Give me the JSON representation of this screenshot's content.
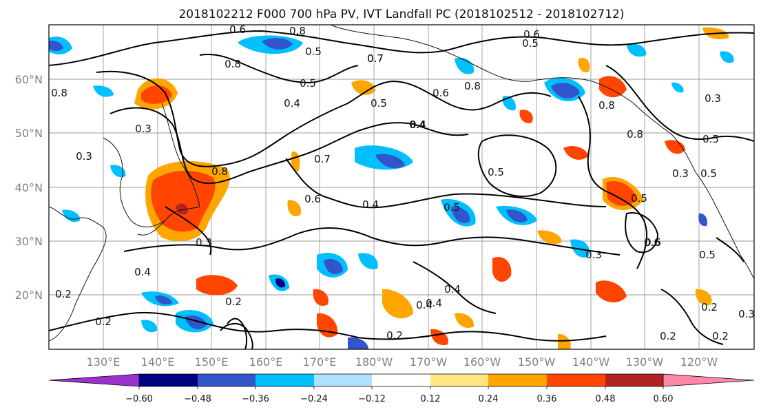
{
  "title": "2018102212 F000 700 hPa PV, IVT Landfall PC (2018102512 - 2018102712)",
  "lat_labels": [
    "60°N",
    "50°N",
    "40°N",
    "30°N",
    "20°N"
  ],
  "lon_labels": [
    "130°E",
    "140°E",
    "150°E",
    "160°E",
    "170°E",
    "180°W",
    "170°W",
    "160°W",
    "150°W",
    "140°W",
    "130°W",
    "120°W"
  ],
  "colorbar": {
    "ticks": [
      "−0.60",
      "−0.48",
      "−0.36",
      "−0.24",
      "−0.12",
      "0.12",
      "0.24",
      "0.36",
      "0.48",
      "0.60"
    ],
    "colors": [
      "#9933cc",
      "#000080",
      "#3355cc",
      "#00bfff",
      "#b0e0ff",
      "#ffffff",
      "#ffe680",
      "#ffa500",
      "#ff4500",
      "#b22222",
      "#ff88aa"
    ],
    "extend": "both"
  },
  "contour_labels": [
    "0.6",
    "0.8",
    "0.5",
    "0.7",
    "0.8",
    "0.6",
    "0.5",
    "0.7",
    "0.5",
    "0.4",
    "0.5",
    "0.6",
    "0.8",
    "0.4",
    "0.8",
    "0.3",
    "0.8",
    "0.3",
    "0.8",
    "0.5",
    "0.4",
    "0.8",
    "0.6",
    "0.4",
    "0.5",
    "0.3",
    "0.7",
    "0.5",
    "0.3",
    "0.5",
    "0.6",
    "0.3",
    "0.3",
    "0.4",
    "0.2",
    "0.2",
    "0.2",
    "0.4",
    "0.4",
    "0.4",
    "0.2",
    "0.2",
    "0.5",
    "0.2",
    "0.2",
    "0.3",
    "0.5",
    "0.6"
  ]
}
